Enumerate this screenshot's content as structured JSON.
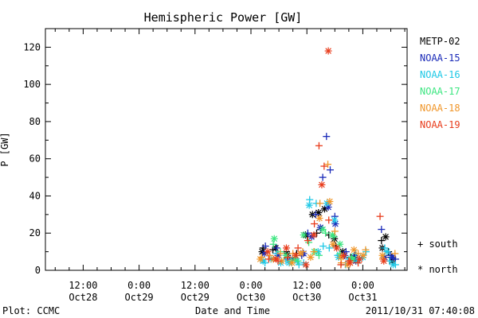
{
  "title": "Hemispheric Power [GW]",
  "ylabel": "P [GW]",
  "xlabel": "Date and Time",
  "footer_left": "Plot: CCMC",
  "footer_right": "2011/10/31 07:40:08",
  "marker_legend": {
    "south": "+ south",
    "north": "* north"
  },
  "chart_data": {
    "type": "scatter",
    "title": "Hemispheric Power [GW]",
    "xlabel": "Date and Time",
    "ylabel": "P [GW]",
    "x_unit": "hours since 2011-10-28 00:00 UT",
    "xlim": [
      3.9,
      81.5
    ],
    "ylim": [
      0,
      130
    ],
    "y_ticks": [
      0,
      20,
      40,
      60,
      80,
      100,
      120
    ],
    "x_ticks": [
      {
        "x": 12,
        "line1": "12:00",
        "line2": "Oct28"
      },
      {
        "x": 24,
        "line1": "0:00",
        "line2": "Oct29"
      },
      {
        "x": 36,
        "line1": "12:00",
        "line2": "Oct29"
      },
      {
        "x": 48,
        "line1": "0:00",
        "line2": "Oct30"
      },
      {
        "x": 60,
        "line1": "12:00",
        "line2": "Oct30"
      },
      {
        "x": 72,
        "line1": "0:00",
        "line2": "Oct31"
      }
    ],
    "legend": "right",
    "series": [
      {
        "name": "METP-02",
        "color": "#000000",
        "south": [
          [
            50.6,
            12
          ],
          [
            52.7,
            11
          ],
          [
            55.6,
            10
          ],
          [
            57.8,
            9
          ],
          [
            60.1,
            18
          ],
          [
            62.1,
            20
          ],
          [
            63.0,
            22
          ],
          [
            64.7,
            19
          ],
          [
            66.2,
            13
          ],
          [
            69.4,
            7
          ],
          [
            76.0,
            16
          ],
          [
            77.5,
            10
          ],
          [
            78.2,
            7
          ]
        ],
        "north": [
          [
            50.4,
            10
          ],
          [
            53.3,
            12
          ],
          [
            55.8,
            8
          ],
          [
            59.7,
            19
          ],
          [
            61.2,
            30
          ],
          [
            62.5,
            31
          ],
          [
            63.8,
            33
          ],
          [
            65.9,
            17
          ],
          [
            67.7,
            10
          ],
          [
            70.1,
            7
          ],
          [
            76.2,
            12
          ],
          [
            76.9,
            18
          ],
          [
            78.3,
            5
          ]
        ]
      },
      {
        "name": "NOAA-15",
        "color": "#1a2ab8",
        "south": [
          [
            51.1,
            13
          ],
          [
            53.5,
            12
          ],
          [
            55.9,
            6
          ],
          [
            58.9,
            8
          ],
          [
            60.2,
            20
          ],
          [
            61.9,
            30
          ],
          [
            63.4,
            50
          ],
          [
            64.2,
            72
          ],
          [
            65.0,
            54
          ],
          [
            66.0,
            29
          ],
          [
            68.4,
            10
          ],
          [
            70.3,
            8
          ],
          [
            71.3,
            6
          ],
          [
            76.0,
            22
          ],
          [
            77.9,
            8
          ],
          [
            79.0,
            6
          ]
        ],
        "north": [
          [
            50.9,
            9
          ],
          [
            53.8,
            8
          ],
          [
            56.9,
            6
          ],
          [
            59.3,
            9
          ],
          [
            61.0,
            18
          ],
          [
            62.9,
            23
          ],
          [
            64.6,
            34
          ],
          [
            66.1,
            25
          ],
          [
            68.1,
            8
          ],
          [
            70.5,
            5
          ],
          [
            76.7,
            7
          ],
          [
            78.4,
            7
          ]
        ]
      },
      {
        "name": "NOAA-16",
        "color": "#1ec8e6",
        "south": [
          [
            51.0,
            4
          ],
          [
            53.5,
            9
          ],
          [
            55.5,
            5
          ],
          [
            58.3,
            3
          ],
          [
            59.3,
            4
          ],
          [
            60.6,
            38
          ],
          [
            62.0,
            36
          ],
          [
            63.5,
            13
          ],
          [
            64.8,
            12
          ],
          [
            66.6,
            8
          ],
          [
            68.3,
            3
          ],
          [
            70.5,
            9
          ],
          [
            72.7,
            10
          ],
          [
            76.7,
            12
          ],
          [
            77.7,
            5
          ],
          [
            79.0,
            3
          ]
        ],
        "north": [
          [
            50.6,
            5
          ],
          [
            52.3,
            6
          ],
          [
            54.4,
            4
          ],
          [
            56.2,
            4
          ],
          [
            57.9,
            5
          ],
          [
            60.5,
            35
          ],
          [
            62.4,
            10
          ],
          [
            64.3,
            36
          ],
          [
            65.9,
            27
          ],
          [
            66.8,
            7
          ],
          [
            69.0,
            6
          ],
          [
            70.9,
            5
          ],
          [
            72.0,
            7
          ],
          [
            77.2,
            10
          ],
          [
            78.5,
            3
          ]
        ]
      },
      {
        "name": "NOAA-17",
        "color": "#3ce680",
        "south": [
          [
            52.8,
            14
          ],
          [
            54.3,
            10
          ],
          [
            56.6,
            5
          ],
          [
            58.1,
            5
          ],
          [
            60.4,
            15
          ],
          [
            62.6,
            8
          ],
          [
            64.0,
            20
          ],
          [
            65.8,
            18
          ],
          [
            67.1,
            9
          ],
          [
            69.6,
            7
          ]
        ],
        "north": [
          [
            53.0,
            17
          ],
          [
            55.5,
            8
          ],
          [
            57.4,
            6
          ],
          [
            59.3,
            19
          ],
          [
            61.6,
            10
          ],
          [
            63.4,
            22
          ],
          [
            65.5,
            19
          ],
          [
            67.1,
            14
          ],
          [
            69.9,
            6
          ]
        ]
      },
      {
        "name": "NOAA-18",
        "color": "#f0962a",
        "south": [
          [
            50.3,
            7
          ],
          [
            52.0,
            8
          ],
          [
            54.3,
            9
          ],
          [
            57.0,
            9
          ],
          [
            59.1,
            10
          ],
          [
            61.5,
            10
          ],
          [
            62.8,
            36
          ],
          [
            64.5,
            57
          ],
          [
            66.0,
            21
          ],
          [
            67.4,
            4
          ],
          [
            69.2,
            5
          ],
          [
            71.0,
            9
          ],
          [
            72.6,
            11
          ],
          [
            76.3,
            6
          ],
          [
            78.9,
            9
          ]
        ],
        "north": [
          [
            50.0,
            6
          ],
          [
            52.8,
            6
          ],
          [
            54.6,
            5
          ],
          [
            56.8,
            4
          ],
          [
            58.6,
            9
          ],
          [
            60.8,
            7
          ],
          [
            62.7,
            28
          ],
          [
            64.9,
            37
          ],
          [
            65.6,
            14
          ],
          [
            67.3,
            7
          ],
          [
            68.7,
            3
          ],
          [
            70.1,
            11
          ],
          [
            72.1,
            8
          ],
          [
            76.2,
            8
          ]
        ]
      },
      {
        "name": "NOAA-19",
        "color": "#e83c1c",
        "south": [
          [
            51.8,
            6
          ],
          [
            53.8,
            5
          ],
          [
            55.9,
            7
          ],
          [
            58.1,
            12
          ],
          [
            60.2,
            16
          ],
          [
            61.6,
            25
          ],
          [
            62.6,
            67
          ],
          [
            63.7,
            56
          ],
          [
            64.7,
            27
          ],
          [
            67.3,
            3
          ],
          [
            69.0,
            5
          ],
          [
            71.0,
            4
          ],
          [
            75.7,
            29
          ]
        ],
        "north": [
          [
            51.6,
            10
          ],
          [
            53.4,
            6
          ],
          [
            55.6,
            12
          ],
          [
            57.6,
            8
          ],
          [
            59.8,
            3
          ],
          [
            61.5,
            19
          ],
          [
            63.2,
            46
          ],
          [
            64.6,
            118
          ],
          [
            66.4,
            12
          ],
          [
            67.9,
            8
          ],
          [
            69.3,
            4
          ],
          [
            71.3,
            6
          ],
          [
            76.5,
            5
          ]
        ]
      }
    ]
  }
}
